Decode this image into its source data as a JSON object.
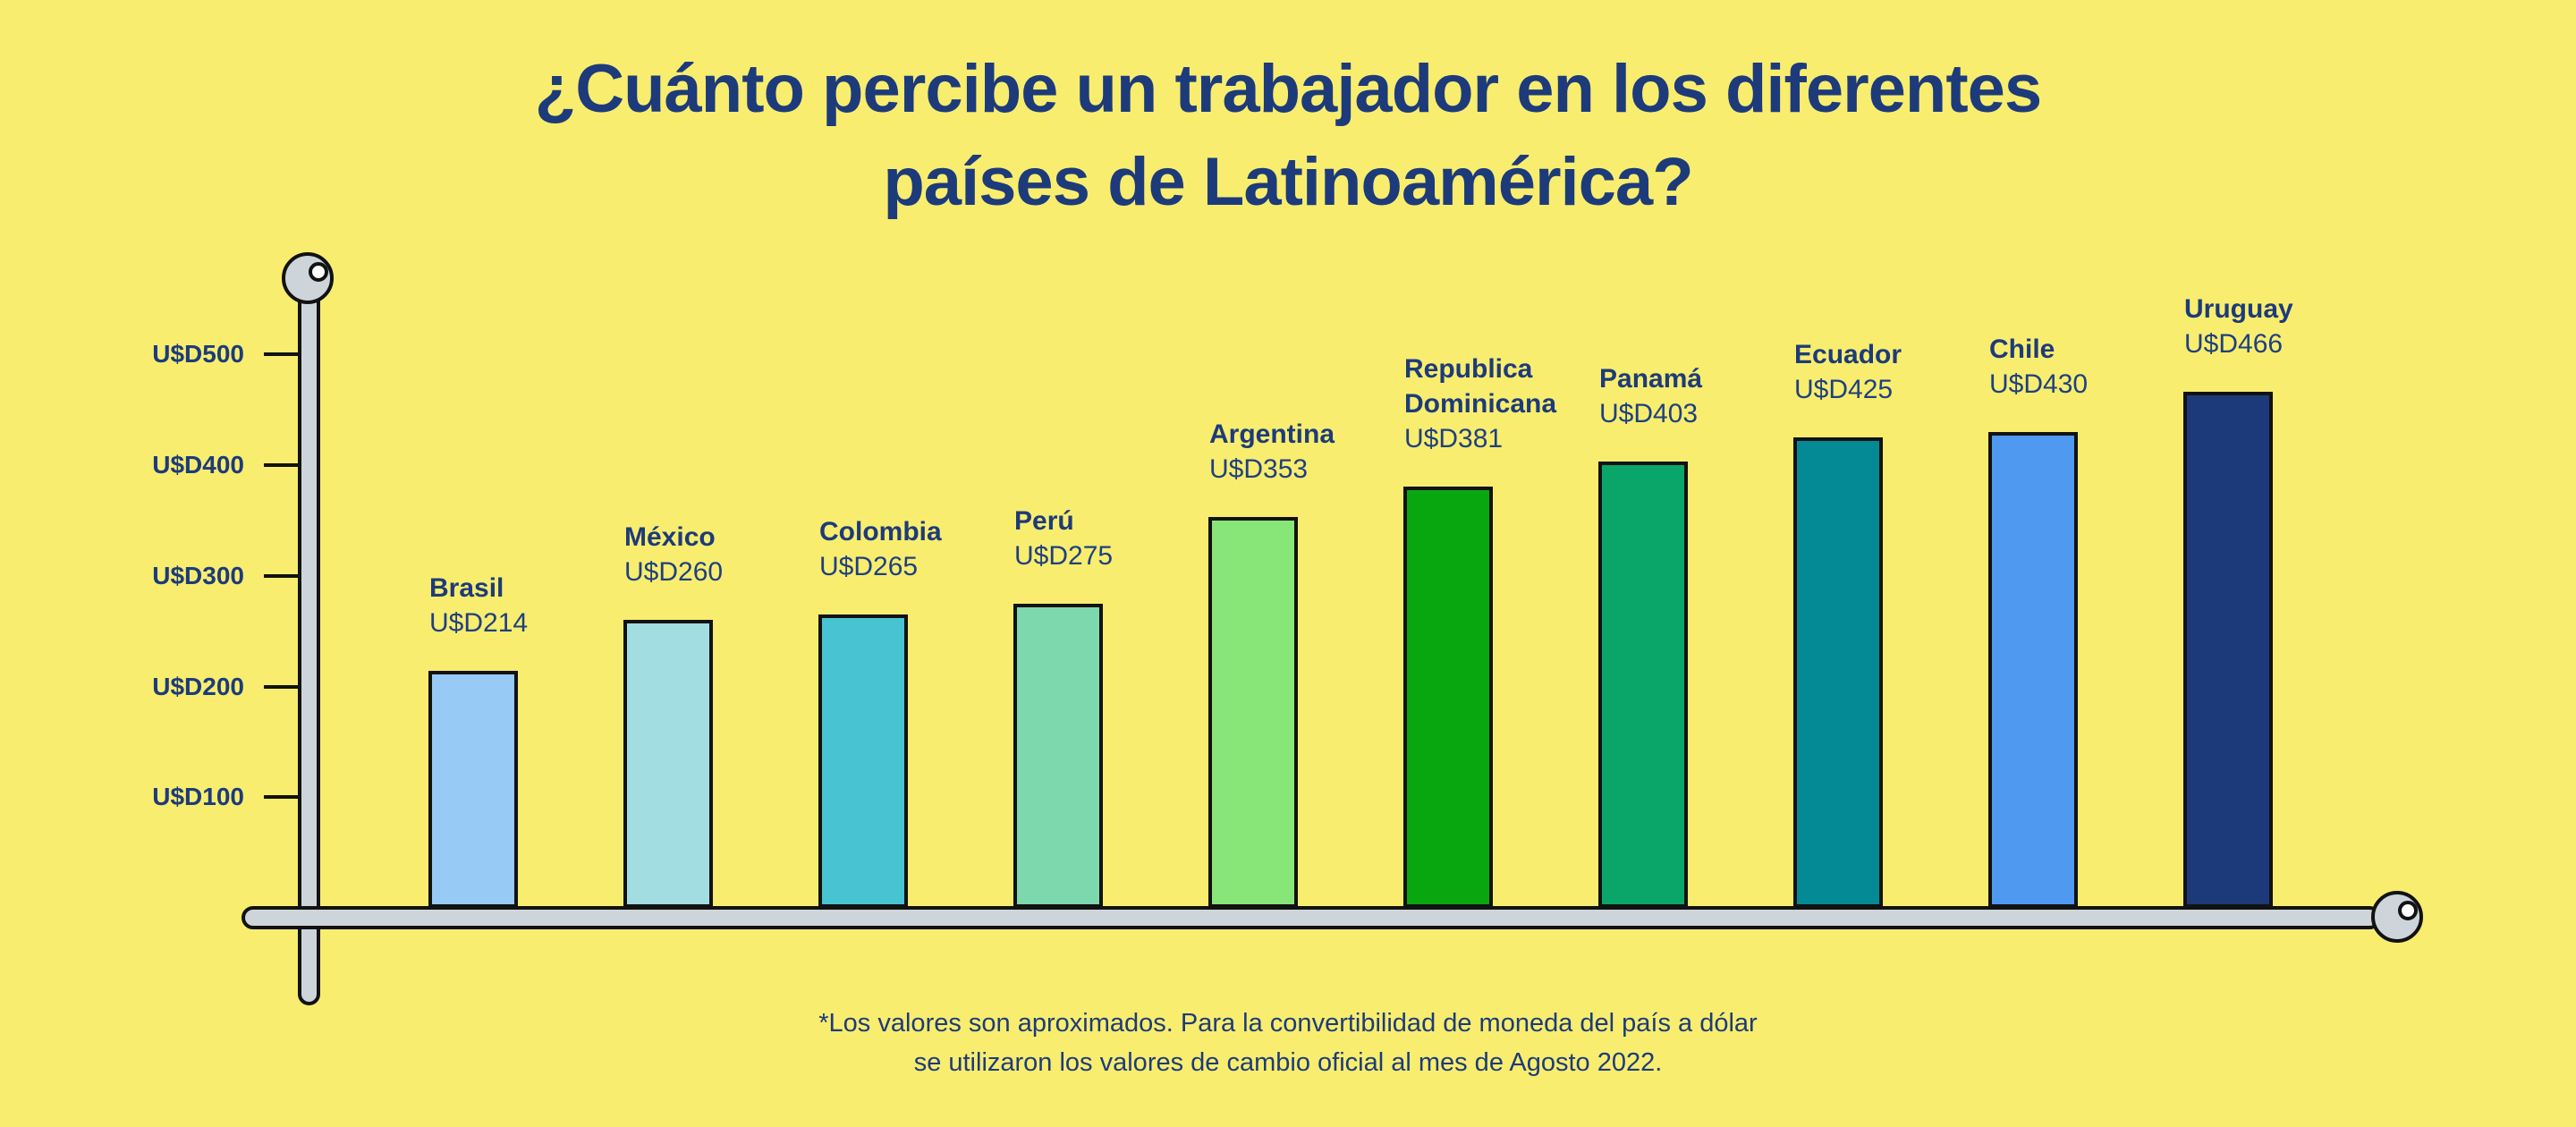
{
  "title": {
    "line1": "¿Cuánto percibe un trabajador en los diferentes",
    "line2": "países de Latinoamérica?"
  },
  "footnote": {
    "line1": "*Los valores son aproximados. Para la convertibilidad de moneda del país a dólar",
    "line2": "se utilizaron los valores de cambio oficial al mes de Agosto 2022."
  },
  "y_axis": {
    "ticks": [
      500,
      400,
      300,
      200,
      100
    ],
    "tick_labels": [
      "U$D500",
      "U$D400",
      "U$D300",
      "U$D200",
      "U$D100"
    ]
  },
  "chart_data": {
    "type": "bar",
    "title": "¿Cuánto percibe un trabajador en los diferentes países de Latinoamérica?",
    "categories": [
      "Brasil",
      "México",
      "Colombia",
      "Perú",
      "Argentina",
      "Republica Dominicana",
      "Panamá",
      "Ecuador",
      "Chile",
      "Uruguay"
    ],
    "values": [
      214,
      260,
      265,
      275,
      353,
      381,
      403,
      425,
      430,
      466
    ],
    "value_labels": [
      "U$D214",
      "U$D260",
      "U$D265",
      "U$D275",
      "U$D353",
      "U$D381",
      "U$D403",
      "U$D425",
      "U$D430",
      "U$D466"
    ],
    "bar_colors": [
      "#97cbf5",
      "#a2dde2",
      "#48c3d1",
      "#7ed8ad",
      "#88e679",
      "#09a70f",
      "#0aa669",
      "#048a94",
      "#4f99f0",
      "#1c3a7a"
    ],
    "currency_prefix": "U$D",
    "xlabel": "",
    "ylabel": "",
    "ylim": [
      0,
      560
    ],
    "grid": false,
    "legend": "none"
  },
  "colors": {
    "background": "#f8ed6f",
    "text_navy": "#1d3b7a",
    "axis_fill": "#cdd5da",
    "outline": "#121212",
    "knob_hole": "#ffffff"
  }
}
